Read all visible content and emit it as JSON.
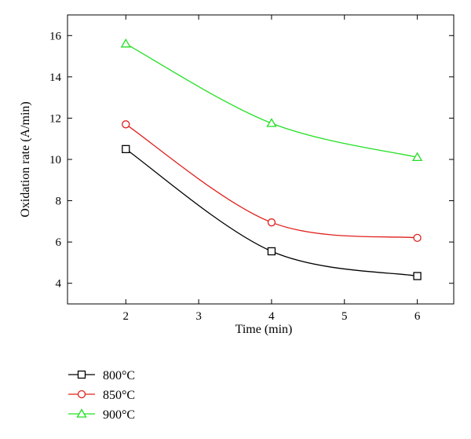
{
  "chart_data": {
    "type": "line",
    "title": "",
    "xlabel": "Time (min)",
    "ylabel": "Oxidation rate (A/min)",
    "x": [
      2,
      4,
      6
    ],
    "xlim": [
      1.2,
      6.5
    ],
    "ylim": [
      3,
      17
    ],
    "xticks": [
      2,
      3,
      4,
      5,
      6
    ],
    "yticks": [
      4,
      6,
      8,
      10,
      12,
      14,
      16
    ],
    "grid": false,
    "legend_position": "bottom-left, below plot",
    "series": [
      {
        "name": "800°C",
        "values": [
          10.5,
          5.55,
          4.35
        ],
        "color": "#000000",
        "marker": "square"
      },
      {
        "name": "850°C",
        "values": [
          11.7,
          6.95,
          6.2
        ],
        "color": "#e0201b",
        "marker": "circle"
      },
      {
        "name": "900°C",
        "values": [
          15.6,
          11.75,
          10.1
        ],
        "color": "#22e022",
        "marker": "triangle"
      }
    ]
  }
}
